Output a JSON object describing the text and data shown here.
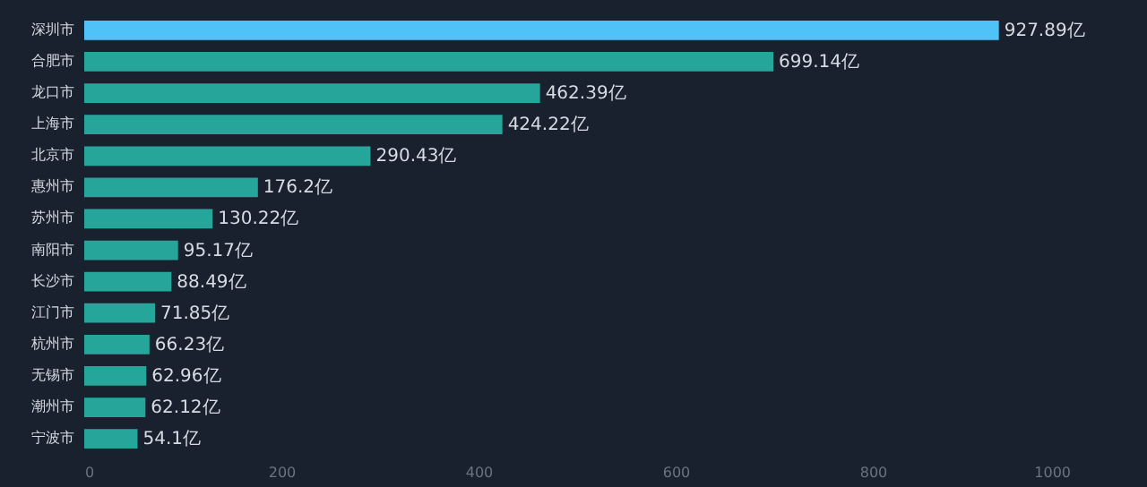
{
  "chart_data": {
    "type": "bar",
    "orientation": "horizontal",
    "categories": [
      "深圳市",
      "合肥市",
      "龙口市",
      "上海市",
      "北京市",
      "惠州市",
      "苏州市",
      "南阳市",
      "长沙市",
      "江门市",
      "杭州市",
      "无锡市",
      "潮州市",
      "宁波市"
    ],
    "values": [
      927.89,
      699.14,
      462.39,
      424.22,
      290.43,
      176.2,
      130.22,
      95.17,
      88.49,
      71.85,
      66.23,
      62.96,
      62.12,
      54.1
    ],
    "value_labels": [
      "927.89亿",
      "699.14亿",
      "462.39亿",
      "424.22亿",
      "290.43亿",
      "176.2亿",
      "130.22亿",
      "95.17亿",
      "88.49亿",
      "71.85亿",
      "66.23亿",
      "62.96亿",
      "62.12亿",
      "54.1亿"
    ],
    "colors": [
      "#4fc3f7",
      "#26a69a",
      "#26a69a",
      "#26a69a",
      "#26a69a",
      "#26a69a",
      "#26a69a",
      "#26a69a",
      "#26a69a",
      "#26a69a",
      "#26a69a",
      "#26a69a",
      "#26a69a",
      "#26a69a"
    ],
    "xlim": [
      0,
      1000
    ],
    "xticks": [
      0,
      200,
      400,
      600,
      800,
      1000
    ],
    "grid": false
  }
}
